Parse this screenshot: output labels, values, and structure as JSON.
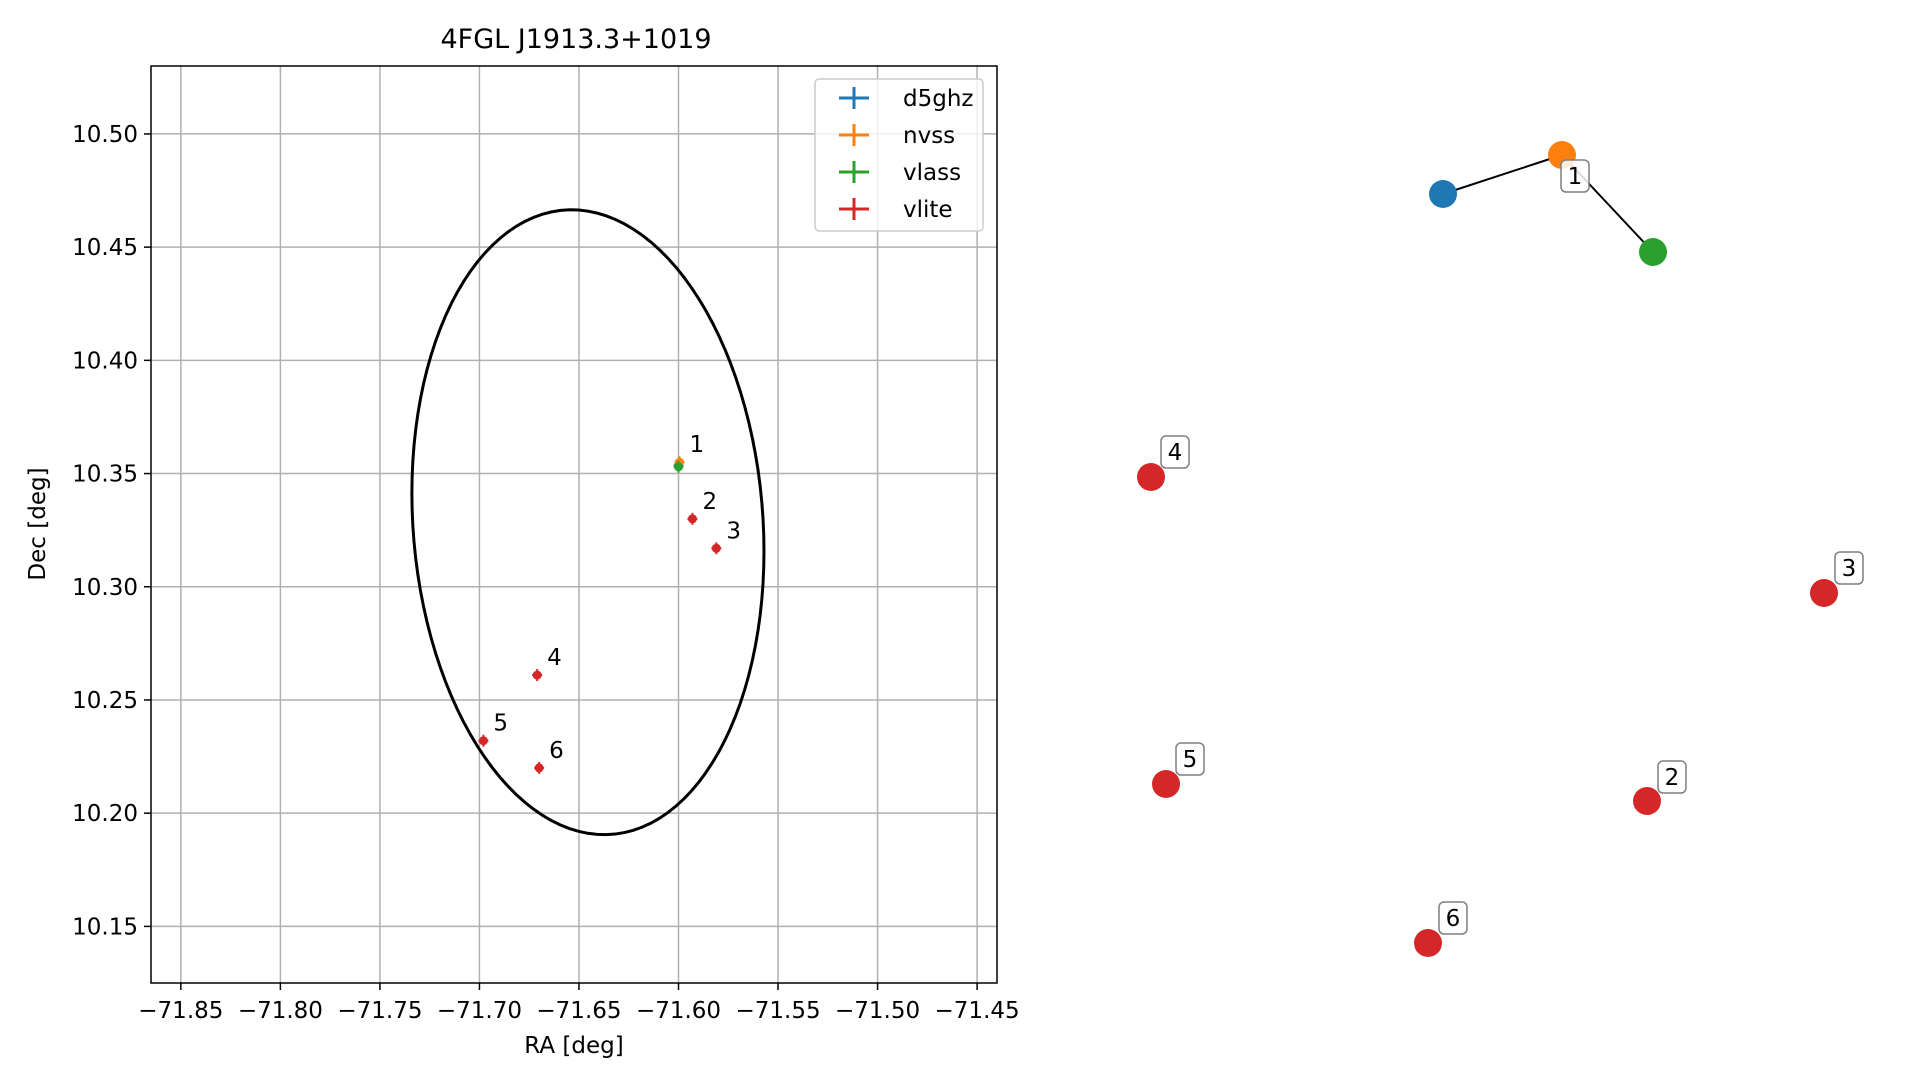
{
  "chart_data": {
    "type": "scatter",
    "title": "4FGL J1913.3+1019",
    "xlabel": "RA [deg]",
    "ylabel": "Dec [deg]",
    "xlim": [
      -71.865,
      -71.44
    ],
    "ylim": [
      10.125,
      10.53
    ],
    "xticks": [
      -71.85,
      -71.8,
      -71.75,
      -71.7,
      -71.65,
      -71.6,
      -71.55,
      -71.5,
      -71.45
    ],
    "xtick_labels": [
      "−71.85",
      "−71.80",
      "−71.75",
      "−71.70",
      "−71.65",
      "−71.60",
      "−71.55",
      "−71.50",
      "−71.45"
    ],
    "yticks": [
      10.15,
      10.2,
      10.25,
      10.3,
      10.35,
      10.4,
      10.45,
      10.5
    ],
    "ytick_labels": [
      "10.15",
      "10.20",
      "10.25",
      "10.30",
      "10.35",
      "10.40",
      "10.45",
      "10.50"
    ],
    "grid": true,
    "legend_position": "top-right",
    "ellipse": {
      "center": [
        -71.6455,
        10.3285
      ],
      "semi_axes": [
        0.0878,
        0.1384
      ],
      "rotation_deg": 5.7,
      "color": "#000000"
    },
    "series": [
      {
        "name": "d5ghz",
        "color": "#1f77b4",
        "points": [
          {
            "x": -71.6,
            "y": 10.3535,
            "label": ""
          }
        ]
      },
      {
        "name": "nvss",
        "color": "#ff7f0e",
        "points": [
          {
            "x": -71.5995,
            "y": 10.355,
            "label": "1"
          }
        ]
      },
      {
        "name": "vlass",
        "color": "#2ca02c",
        "points": [
          {
            "x": -71.6,
            "y": 10.353,
            "label": ""
          }
        ]
      },
      {
        "name": "vlite",
        "color": "#d62728",
        "points": [
          {
            "x": -71.593,
            "y": 10.33,
            "label": "2"
          },
          {
            "x": -71.581,
            "y": 10.317,
            "label": "3"
          },
          {
            "x": -71.671,
            "y": 10.261,
            "label": "4"
          },
          {
            "x": -71.698,
            "y": 10.232,
            "label": "5"
          },
          {
            "x": -71.67,
            "y": 10.22,
            "label": "6"
          }
        ]
      }
    ],
    "graph": {
      "nodes": [
        {
          "id": "d5ghz",
          "color": "#1f77b4",
          "label": ""
        },
        {
          "id": "nvss",
          "color": "#ff7f0e",
          "label": "1"
        },
        {
          "id": "vlass",
          "color": "#2ca02c",
          "label": ""
        },
        {
          "id": "vlite-2",
          "color": "#d62728",
          "label": "2"
        },
        {
          "id": "vlite-3",
          "color": "#d62728",
          "label": "3"
        },
        {
          "id": "vlite-4",
          "color": "#d62728",
          "label": "4"
        },
        {
          "id": "vlite-5",
          "color": "#d62728",
          "label": "5"
        },
        {
          "id": "vlite-6",
          "color": "#d62728",
          "label": "6"
        }
      ],
      "edges": [
        [
          "d5ghz",
          "nvss"
        ],
        [
          "nvss",
          "vlass"
        ]
      ]
    }
  }
}
